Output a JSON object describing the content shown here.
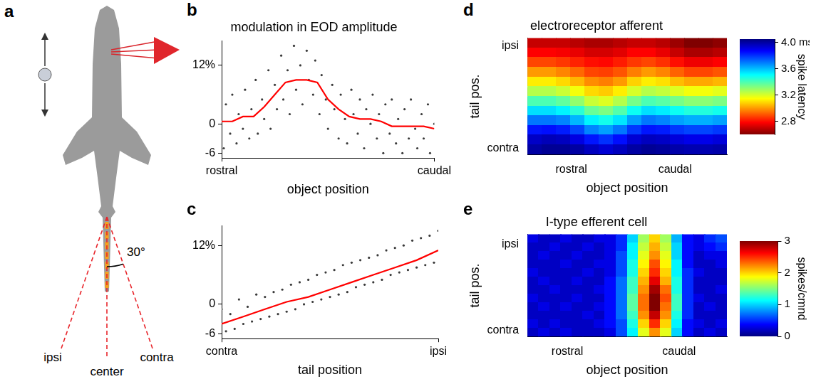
{
  "diagram": {
    "panel": "a",
    "labels": {
      "ipsi": "ipsi",
      "center": "center",
      "contra": "contra",
      "angle": "30°"
    }
  },
  "chart_data": [
    {
      "panel": "b",
      "type": "scatter",
      "title": "modulation in EOD amplitude",
      "x_label": "object position",
      "xlim": [
        0,
        1
      ],
      "xticks": [
        {
          "value": 0,
          "label": "rostral"
        },
        {
          "value": 1,
          "label": "caudal"
        }
      ],
      "ylim": [
        -7,
        17
      ],
      "yticks": [
        {
          "value": 12,
          "label": "12%"
        },
        0,
        -6
      ],
      "grid": false,
      "series": [
        {
          "type": "scatter",
          "color": "#3a3a3a",
          "marker": "dot",
          "x": [
            0.01,
            0.02,
            0.04,
            0.05,
            0.07,
            0.08,
            0.1,
            0.11,
            0.13,
            0.14,
            0.16,
            0.17,
            0.19,
            0.2,
            0.22,
            0.23,
            0.25,
            0.26,
            0.28,
            0.29,
            0.31,
            0.32,
            0.34,
            0.35,
            0.37,
            0.38,
            0.4,
            0.41,
            0.43,
            0.44,
            0.46,
            0.47,
            0.49,
            0.5,
            0.52,
            0.53,
            0.55,
            0.56,
            0.58,
            0.59,
            0.61,
            0.62,
            0.64,
            0.65,
            0.67,
            0.68,
            0.7,
            0.71,
            0.73,
            0.74,
            0.76,
            0.77,
            0.79,
            0.8,
            0.82,
            0.83,
            0.85,
            0.86,
            0.88,
            0.89,
            0.91,
            0.92,
            0.94,
            0.95,
            0.97,
            0.98,
            1.0
          ],
          "values": [
            -5,
            4,
            -2,
            6,
            -4,
            2,
            -1,
            7,
            -3,
            3,
            9,
            -2,
            5,
            1,
            11,
            -1,
            8,
            3,
            14,
            5,
            11,
            2,
            16,
            7,
            12,
            4,
            15,
            9,
            6,
            13,
            2,
            10,
            5,
            -1,
            8,
            3,
            -3,
            6,
            1,
            -4,
            7,
            2,
            -2,
            5,
            -5,
            3,
            0,
            6,
            -3,
            2,
            -6,
            4,
            -2,
            5,
            -4,
            1,
            -6,
            3,
            -3,
            5,
            -1,
            -5,
            2,
            -3,
            4,
            -6,
            0
          ]
        },
        {
          "type": "line",
          "color": "#ff0000",
          "marker": "none",
          "line_style": "solid",
          "x": [
            0,
            0.05,
            0.1,
            0.15,
            0.2,
            0.25,
            0.3,
            0.35,
            0.4,
            0.45,
            0.5,
            0.55,
            0.6,
            0.65,
            0.7,
            0.75,
            0.8,
            0.85,
            0.9,
            0.95,
            1.0
          ],
          "values": [
            0.5,
            0.5,
            1.5,
            1.5,
            3.5,
            6,
            8.5,
            9,
            9,
            8.5,
            5,
            3,
            1.5,
            1,
            1,
            0.5,
            -0.5,
            -0.5,
            -0.5,
            -0.5,
            -1
          ]
        }
      ]
    },
    {
      "panel": "c",
      "type": "scatter",
      "x_label": "tail position",
      "xlim": [
        0,
        1
      ],
      "xticks": [
        {
          "value": 0,
          "label": "contra"
        },
        {
          "value": 1,
          "label": "ipsi"
        }
      ],
      "ylim": [
        -7,
        16
      ],
      "yticks": [
        {
          "value": 12,
          "label": "12%"
        },
        0,
        -6
      ],
      "grid": false,
      "series": [
        {
          "type": "scatter",
          "color": "#3a3a3a",
          "marker": "dot",
          "x": [
            0,
            0.02,
            0.04,
            0.06,
            0.08,
            0.1,
            0.12,
            0.14,
            0.16,
            0.18,
            0.2,
            0.22,
            0.24,
            0.26,
            0.28,
            0.3,
            0.32,
            0.34,
            0.36,
            0.38,
            0.4,
            0.42,
            0.44,
            0.46,
            0.48,
            0.5,
            0.52,
            0.54,
            0.56,
            0.58,
            0.6,
            0.62,
            0.64,
            0.66,
            0.68,
            0.7,
            0.72,
            0.74,
            0.76,
            0.78,
            0.8,
            0.82,
            0.84,
            0.86,
            0.88,
            0.9,
            0.92,
            0.94,
            0.96,
            0.98,
            1.0
          ],
          "values": [
            -1,
            -5.5,
            -2,
            -5,
            1,
            -4,
            -0.5,
            -3.5,
            2,
            -3,
            1.5,
            -2.5,
            2.5,
            -2,
            3,
            -1.5,
            4,
            -1,
            4.5,
            0,
            5,
            0.5,
            6,
            1,
            6.5,
            1.5,
            7,
            2,
            8,
            2.5,
            8.5,
            3.5,
            9,
            4,
            9.5,
            4.5,
            10,
            5,
            11,
            6,
            11.5,
            6.5,
            12,
            7,
            13,
            7.5,
            13.5,
            8,
            14,
            8.5,
            15
          ]
        },
        {
          "type": "line",
          "color": "#ff0000",
          "marker": "none",
          "line_style": "solid",
          "x": [
            0,
            0.1,
            0.2,
            0.3,
            0.4,
            0.5,
            0.6,
            0.7,
            0.8,
            0.9,
            1.0
          ],
          "values": [
            -4,
            -2.5,
            -1,
            0.5,
            1.5,
            3,
            4.5,
            6,
            7.5,
            9,
            11
          ]
        }
      ]
    },
    {
      "panel": "d",
      "type": "heatmap",
      "title": "electroreceptor afferent",
      "x_label": "object position",
      "y_label": "tail pos.",
      "xlim": [
        0,
        1
      ],
      "xticks": [
        {
          "value": 0.22,
          "label": "rostral"
        },
        {
          "value": 0.74,
          "label": "caudal"
        }
      ],
      "ylim": [
        0,
        1
      ],
      "yticks": [
        {
          "value": 0.93,
          "label": "ipsi"
        },
        {
          "value": 0.05,
          "label": "contra"
        }
      ],
      "grid": false,
      "color": "jet_reversed",
      "cells": [
        [
          2.7,
          2.7,
          2.7,
          2.68,
          2.66,
          2.66,
          2.68,
          2.7,
          2.7,
          2.68,
          2.64,
          2.6,
          2.6,
          2.62
        ],
        [
          2.78,
          2.78,
          2.77,
          2.75,
          2.72,
          2.72,
          2.74,
          2.78,
          2.78,
          2.75,
          2.7,
          2.66,
          2.66,
          2.68
        ],
        [
          2.88,
          2.88,
          2.86,
          2.83,
          2.8,
          2.79,
          2.82,
          2.86,
          2.88,
          2.85,
          2.8,
          2.76,
          2.76,
          2.78
        ],
        [
          3.0,
          3.0,
          2.97,
          2.93,
          2.88,
          2.87,
          2.9,
          2.96,
          3.0,
          2.97,
          2.92,
          2.88,
          2.88,
          2.9
        ],
        [
          3.12,
          3.12,
          3.09,
          3.04,
          2.98,
          2.96,
          3.0,
          3.08,
          3.12,
          3.1,
          3.05,
          3.02,
          3.02,
          3.04
        ],
        [
          3.25,
          3.25,
          3.22,
          3.16,
          3.09,
          3.07,
          3.12,
          3.2,
          3.25,
          3.23,
          3.19,
          3.16,
          3.16,
          3.18
        ],
        [
          3.4,
          3.4,
          3.37,
          3.3,
          3.22,
          3.19,
          3.25,
          3.34,
          3.4,
          3.38,
          3.34,
          3.31,
          3.31,
          3.33
        ],
        [
          3.55,
          3.55,
          3.52,
          3.45,
          3.36,
          3.33,
          3.39,
          3.49,
          3.55,
          3.53,
          3.49,
          3.46,
          3.46,
          3.48
        ],
        [
          3.7,
          3.7,
          3.68,
          3.61,
          3.52,
          3.48,
          3.54,
          3.64,
          3.7,
          3.68,
          3.64,
          3.62,
          3.62,
          3.64
        ],
        [
          3.84,
          3.85,
          3.83,
          3.77,
          3.68,
          3.64,
          3.7,
          3.79,
          3.84,
          3.83,
          3.79,
          3.77,
          3.77,
          3.79
        ],
        [
          3.95,
          3.97,
          3.96,
          3.91,
          3.84,
          3.8,
          3.85,
          3.93,
          3.96,
          3.95,
          3.92,
          3.9,
          3.9,
          3.92
        ],
        [
          4.0,
          4.02,
          4.02,
          4.0,
          3.96,
          3.93,
          3.96,
          4.0,
          4.02,
          4.01,
          3.99,
          3.98,
          3.98,
          3.99
        ]
      ],
      "colorbar": {
        "lim": [
          2.6,
          4.05
        ],
        "ticks": [
          {
            "value": 4.0,
            "label": "4.0 ms"
          },
          3.6,
          3.2,
          2.8
        ],
        "label": "spike latency"
      }
    },
    {
      "panel": "e",
      "type": "heatmap",
      "title": "I-type efferent cell",
      "x_label": "object position",
      "y_label": "tail pos.",
      "xlim": [
        0,
        1
      ],
      "xticks": [
        {
          "value": 0.2,
          "label": "rostral"
        },
        {
          "value": 0.76,
          "label": "caudal"
        }
      ],
      "ylim": [
        0,
        1
      ],
      "yticks": [
        {
          "value": 0.9,
          "label": "ipsi"
        },
        {
          "value": 0.06,
          "label": "contra"
        }
      ],
      "grid": false,
      "color": "jet",
      "cells": [
        [
          0.3,
          0.2,
          0.2,
          0.3,
          0.2,
          0.2,
          0.3,
          0.3,
          0.5,
          1.0,
          1.6,
          2.0,
          1.6,
          0.9,
          0.4,
          0.3,
          0.5,
          0.6
        ],
        [
          0.2,
          0.2,
          0.3,
          0.2,
          0.2,
          0.3,
          0.2,
          0.3,
          0.5,
          1.1,
          1.7,
          2.1,
          1.7,
          1.0,
          0.4,
          0.3,
          0.4,
          0.5
        ],
        [
          0.2,
          0.3,
          0.2,
          0.2,
          0.3,
          0.2,
          0.2,
          0.3,
          0.6,
          1.1,
          1.8,
          2.2,
          1.8,
          1.0,
          0.4,
          0.2,
          0.3,
          0.3
        ],
        [
          0.2,
          0.2,
          0.2,
          0.3,
          0.2,
          0.2,
          0.3,
          0.3,
          0.6,
          1.2,
          1.9,
          2.4,
          1.9,
          1.1,
          0.4,
          0.2,
          0.2,
          0.3
        ],
        [
          0.3,
          0.2,
          0.2,
          0.2,
          0.2,
          0.3,
          0.2,
          0.3,
          0.6,
          1.2,
          2.0,
          2.5,
          2.0,
          1.1,
          0.5,
          0.3,
          0.2,
          0.2
        ],
        [
          0.2,
          0.3,
          0.2,
          0.2,
          0.3,
          0.2,
          0.2,
          0.4,
          0.7,
          1.3,
          2.1,
          2.7,
          2.1,
          1.2,
          0.5,
          0.2,
          0.2,
          0.2
        ],
        [
          0.2,
          0.2,
          0.3,
          0.2,
          0.2,
          0.2,
          0.3,
          0.4,
          0.7,
          1.3,
          2.2,
          2.9,
          2.3,
          1.2,
          0.5,
          0.2,
          0.2,
          0.3
        ],
        [
          0.3,
          0.2,
          0.2,
          0.2,
          0.3,
          0.2,
          0.2,
          0.4,
          0.7,
          1.4,
          2.3,
          3.0,
          2.4,
          1.3,
          0.5,
          0.3,
          0.2,
          0.2
        ],
        [
          0.2,
          0.3,
          0.2,
          0.3,
          0.2,
          0.2,
          0.3,
          0.4,
          0.7,
          1.4,
          2.3,
          3.0,
          2.3,
          1.3,
          0.5,
          0.2,
          0.3,
          0.2
        ],
        [
          0.2,
          0.2,
          0.2,
          0.2,
          0.2,
          0.3,
          0.2,
          0.4,
          0.7,
          1.3,
          2.2,
          2.8,
          2.2,
          1.2,
          0.5,
          0.2,
          0.2,
          0.2
        ],
        [
          0.3,
          0.2,
          0.3,
          0.2,
          0.2,
          0.2,
          0.3,
          0.4,
          0.6,
          1.2,
          2.0,
          2.5,
          2.0,
          1.1,
          0.4,
          0.3,
          0.2,
          0.3
        ],
        [
          0.2,
          0.3,
          0.2,
          0.3,
          0.2,
          0.2,
          0.2,
          0.3,
          0.6,
          1.1,
          1.8,
          2.2,
          1.8,
          1.0,
          0.4,
          0.2,
          0.3,
          0.2
        ]
      ],
      "colorbar": {
        "lim": [
          0,
          3
        ],
        "ticks": [
          0,
          1,
          2,
          3
        ],
        "label": "spikes/cmnd"
      }
    }
  ]
}
